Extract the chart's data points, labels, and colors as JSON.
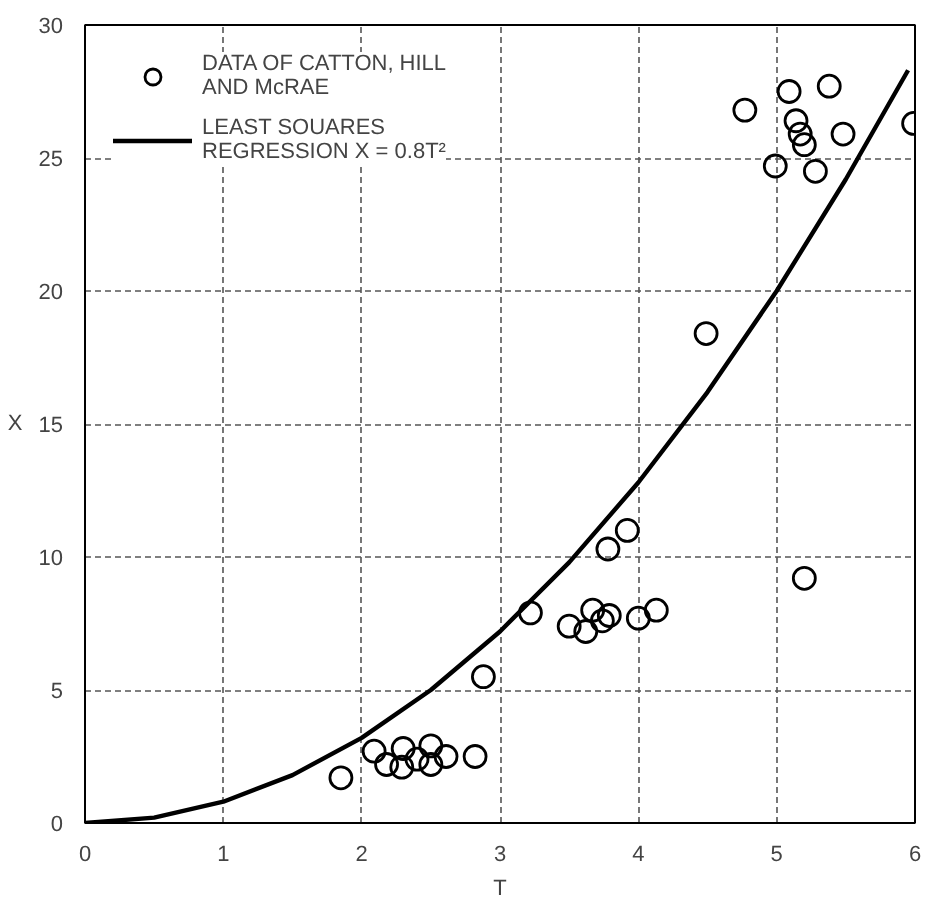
{
  "chart_data": {
    "type": "scatter",
    "xlabel": "T",
    "ylabel": "X",
    "xlim": [
      0,
      6
    ],
    "ylim": [
      0,
      30
    ],
    "xticks": [
      0,
      1,
      2,
      3,
      4,
      5,
      6
    ],
    "yticks": [
      0,
      5,
      10,
      15,
      20,
      25,
      30
    ],
    "grid": true,
    "legend": "top left",
    "marker": "circle",
    "series": [
      {
        "name": "DATA OF CATTON, HILL AND McRAE",
        "color": "#000000",
        "x": [
          1.85,
          2.09,
          2.18,
          2.3,
          2.29,
          2.4,
          2.5,
          2.5,
          2.61,
          2.82,
          2.88,
          3.22,
          3.5,
          3.62,
          3.67,
          3.74,
          3.79,
          3.78,
          3.92,
          4.0,
          4.13,
          5.2,
          4.49,
          4.77,
          4.99,
          5.09,
          5.17,
          5.14,
          5.2,
          5.28,
          5.38,
          5.48,
          5.99
        ],
        "values": [
          1.7,
          2.7,
          2.2,
          2.8,
          2.1,
          2.4,
          2.9,
          2.2,
          2.5,
          2.5,
          5.5,
          7.9,
          7.4,
          7.2,
          8.0,
          7.6,
          7.8,
          10.3,
          11.0,
          7.7,
          8.0,
          9.2,
          18.4,
          26.8,
          24.7,
          27.5,
          25.9,
          26.4,
          25.5,
          24.5,
          27.7,
          25.9,
          26.3
        ]
      },
      {
        "name": "LEAST SOUARES REGRESSION X = 0.8T²",
        "type": "line",
        "color": "#000000",
        "marker": "none",
        "line_style": "solid",
        "x": [
          0,
          0.5,
          1,
          1.5,
          2,
          2.5,
          3,
          3.5,
          4,
          4.5,
          5,
          5.5,
          5.95
        ],
        "values": [
          0,
          0.2,
          0.8,
          1.8,
          3.2,
          5.0,
          7.2,
          9.8,
          12.8,
          16.2,
          20.0,
          24.2,
          28.3
        ]
      }
    ]
  }
}
